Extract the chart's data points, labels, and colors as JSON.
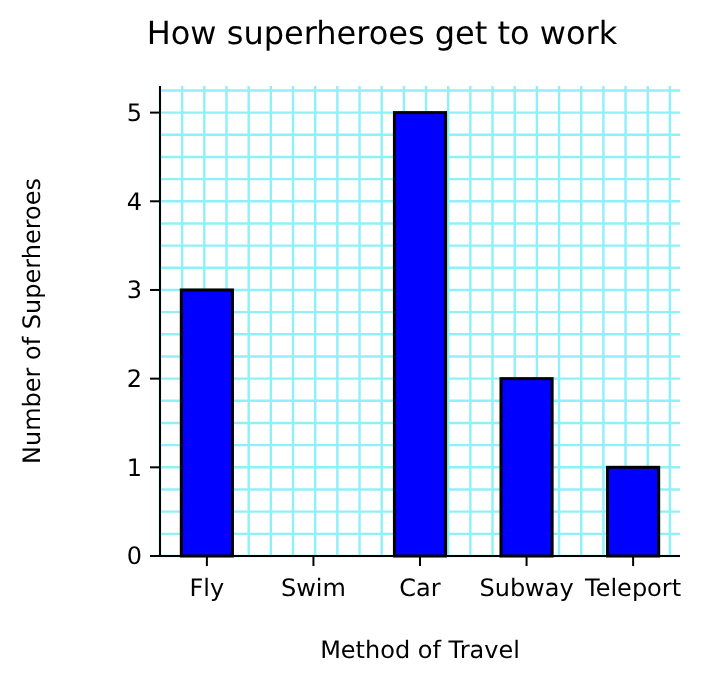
{
  "chart_data": {
    "type": "bar",
    "title": "How superheroes get to work",
    "xlabel": "Method of Travel",
    "ylabel": "Number of Superheroes",
    "categories": [
      "Fly",
      "Swim",
      "Car",
      "Subway",
      "Teleport"
    ],
    "values": [
      3,
      0,
      5,
      2,
      1
    ],
    "color": "#0000ff",
    "ylim": [
      0,
      5.3
    ],
    "yticks": [
      0,
      1,
      2,
      3,
      4,
      5
    ],
    "grid": true
  }
}
